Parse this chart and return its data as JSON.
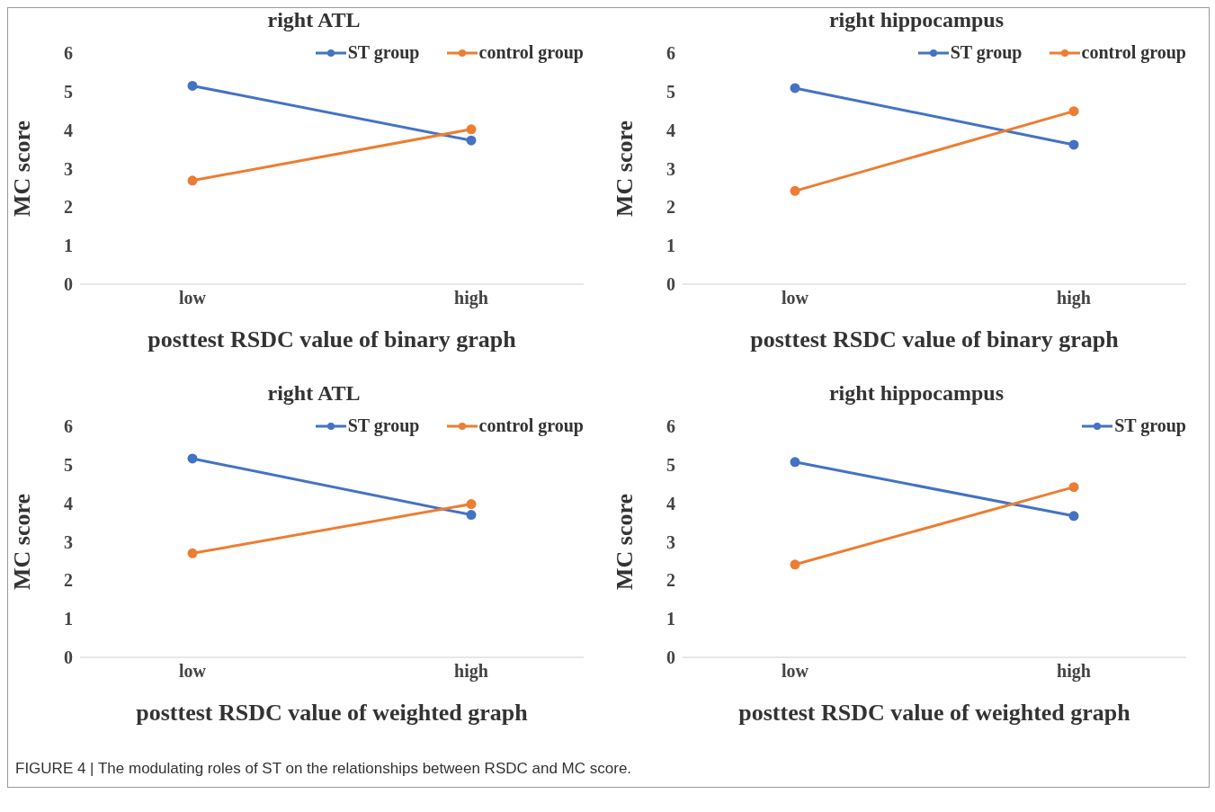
{
  "chart_data": [
    {
      "type": "line",
      "title": "right ATL",
      "xlabel": "posttest RSDC value of  binary graph",
      "ylabel": "MC score",
      "categories": [
        "low",
        "high"
      ],
      "ylim": [
        0,
        6
      ],
      "yticks": [
        0,
        1,
        2,
        3,
        4,
        5,
        6
      ],
      "grid": false,
      "legend": "top right",
      "marker": "circle",
      "series": [
        {
          "name": "ST group",
          "color": "#4472c4",
          "values": [
            5.15,
            3.73
          ]
        },
        {
          "name": "control group",
          "color": "#ed7d31",
          "values": [
            2.69,
            4.02
          ]
        }
      ]
    },
    {
      "type": "line",
      "title": "right hippocampus",
      "xlabel": "posttest RSDC value of  binary graph",
      "ylabel": "MC score",
      "categories": [
        "low",
        "high"
      ],
      "ylim": [
        0,
        6
      ],
      "yticks": [
        0,
        1,
        2,
        3,
        4,
        5,
        6
      ],
      "grid": false,
      "legend": "top right",
      "marker": "circle",
      "series": [
        {
          "name": "ST group",
          "color": "#4472c4",
          "values": [
            5.09,
            3.62
          ]
        },
        {
          "name": "control group",
          "color": "#ed7d31",
          "values": [
            2.42,
            4.49
          ]
        }
      ]
    },
    {
      "type": "line",
      "title": "right ATL",
      "xlabel": "posttest RSDC value of  weighted graph",
      "ylabel": "MC score",
      "categories": [
        "low",
        "high"
      ],
      "ylim": [
        0,
        6
      ],
      "yticks": [
        0,
        1,
        2,
        3,
        4,
        5,
        6
      ],
      "grid": false,
      "legend": "top right",
      "marker": "circle",
      "series": [
        {
          "name": "ST group",
          "color": "#4472c4",
          "values": [
            5.16,
            3.7
          ]
        },
        {
          "name": "control group",
          "color": "#ed7d31",
          "values": [
            2.7,
            3.98
          ]
        }
      ]
    },
    {
      "type": "line",
      "title": "right hippocampus",
      "xlabel": "posttest RSDC value of  weighted graph",
      "ylabel": "MC score",
      "categories": [
        "low",
        "high"
      ],
      "ylim": [
        0,
        6
      ],
      "yticks": [
        0,
        1,
        2,
        3,
        4,
        5,
        6
      ],
      "grid": false,
      "legend": "top right",
      "marker": "circle",
      "annotations": [
        "FIGURE 4 | The modulating roles of ST on the relationships between RSDC and MC score."
      ],
      "series": [
        {
          "name": "ST group",
          "color": "#4472c4",
          "values": [
            5.07,
            3.67
          ]
        },
        {
          "color": "#ed7d31",
          "values": [
            2.41,
            4.42
          ]
        }
      ]
    }
  ]
}
